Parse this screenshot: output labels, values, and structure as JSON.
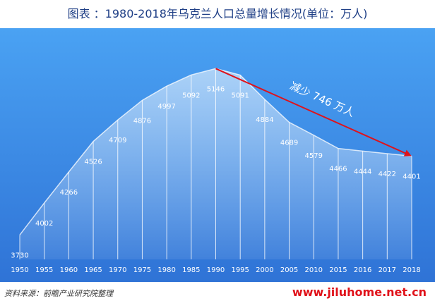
{
  "chart_data": {
    "type": "area",
    "title": "图表 ：1980-2018年乌克兰人口总量增长情况(单位：万人)",
    "categories": [
      "1950",
      "1955",
      "1960",
      "1965",
      "1970",
      "1975",
      "1980",
      "1985",
      "1990",
      "1995",
      "2000",
      "2005",
      "2010",
      "2015",
      "2016",
      "2017",
      "2018"
    ],
    "values": [
      3730,
      4002,
      4266,
      4526,
      4709,
      4876,
      4997,
      5092,
      5146,
      5091,
      4884,
      4689,
      4579,
      4466,
      4444,
      4422,
      4401
    ],
    "ylim": [
      3600,
      5250
    ],
    "grid": false,
    "annotation": {
      "text": "减少 746 万人",
      "from": "1990",
      "to": "2018",
      "color": "#e0121a"
    }
  },
  "footer": {
    "source": "资料来源：前瞻产业研究院整理",
    "watermark": "www.jiluhome.net.cn"
  },
  "colors": {
    "background_top": "#4aa2f3",
    "background_bottom": "#2f73d6",
    "title_text": "#1f3f86",
    "arrow": "#e0121a"
  }
}
